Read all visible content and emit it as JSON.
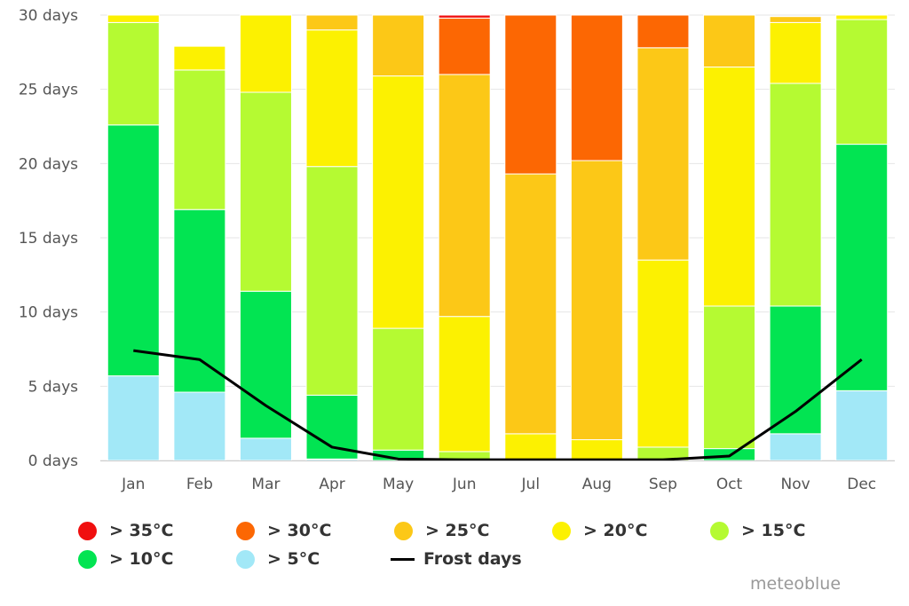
{
  "chart_data": {
    "type": "bar",
    "stacked": true,
    "categories": [
      "Jan",
      "Feb",
      "Mar",
      "Apr",
      "May",
      "Jun",
      "Jul",
      "Aug",
      "Sep",
      "Oct",
      "Nov",
      "Dec"
    ],
    "ylim": [
      0,
      30
    ],
    "yticks": [
      "0 days",
      "5 days",
      "10 days",
      "15 days",
      "20 days",
      "25 days",
      "30 days"
    ],
    "grid": true,
    "legend_position": "bottom",
    "series": [
      {
        "name": "> 5°C",
        "color": "#a2e8f7",
        "values": [
          5.7,
          4.6,
          1.5,
          0.1,
          0,
          0,
          0,
          0,
          0,
          0,
          1.8,
          4.7
        ]
      },
      {
        "name": "> 10°C",
        "color": "#02e452",
        "values": [
          16.9,
          12.3,
          9.9,
          4.3,
          0.7,
          0,
          0,
          0,
          0,
          0.8,
          8.6,
          16.6
        ]
      },
      {
        "name": "> 15°C",
        "color": "#b5fa32",
        "values": [
          6.9,
          9.4,
          13.4,
          15.4,
          8.2,
          0.6,
          0,
          0,
          0.9,
          9.6,
          15.0,
          8.4
        ]
      },
      {
        "name": "> 20°C",
        "color": "#fcf101",
        "values": [
          0.5,
          1.6,
          5.3,
          9.2,
          17.0,
          9.1,
          1.8,
          1.4,
          12.6,
          16.1,
          4.1,
          0.4
        ]
      },
      {
        "name": "> 25°C",
        "color": "#fcc817",
        "values": [
          0,
          0,
          0,
          1.1,
          4.1,
          16.3,
          17.5,
          18.8,
          14.3,
          3.5,
          0.4,
          0
        ]
      },
      {
        "name": "> 30°C",
        "color": "#fc6703",
        "values": [
          0,
          0,
          0,
          0,
          0,
          3.8,
          10.7,
          9.8,
          2.2,
          0,
          0,
          0
        ]
      },
      {
        "name": "> 35°C",
        "color": "#f00f0f",
        "values": [
          0,
          0,
          0,
          0,
          0,
          0.2,
          0,
          0,
          0,
          0,
          0,
          0
        ]
      }
    ],
    "line_series": {
      "name": "Frost days",
      "color": "#000000",
      "values": [
        7.4,
        6.8,
        3.7,
        0.9,
        0.1,
        0.05,
        0.05,
        0.05,
        0.05,
        0.3,
        3.3,
        6.8
      ]
    }
  },
  "legend": [
    {
      "label": "> 35°C",
      "color": "#f00f0f"
    },
    {
      "label": "> 30°C",
      "color": "#fc6703"
    },
    {
      "label": "> 25°C",
      "color": "#fcc817"
    },
    {
      "label": "> 20°C",
      "color": "#fcf101"
    },
    {
      "label": "> 15°C",
      "color": "#b5fa32"
    },
    {
      "label": "> 10°C",
      "color": "#02e452"
    },
    {
      "label": "> 5°C",
      "color": "#a2e8f7"
    },
    {
      "label": "Frost days",
      "color": "#000000",
      "is_line": true
    }
  ],
  "credit": "meteoblue"
}
